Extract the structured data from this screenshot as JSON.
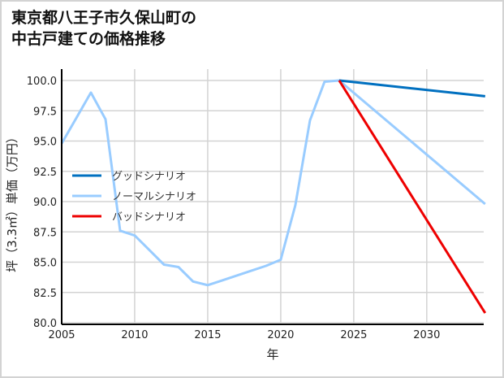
{
  "title_lines": [
    "東京都八王子市久保山町の",
    "中古戸建ての価格推移"
  ],
  "chart_data": {
    "type": "line",
    "title": "東京都八王子市久保山町の中古戸建ての価格推移",
    "xlabel": "年",
    "ylabel": "坪（3.3㎡）単価（万円）",
    "xlim": [
      2005,
      2034
    ],
    "ylim": [
      80.0,
      100.5
    ],
    "xticks": [
      2005,
      2010,
      2015,
      2020,
      2025,
      2030
    ],
    "yticks": [
      80.0,
      82.5,
      85.0,
      87.5,
      90.0,
      92.5,
      95.0,
      97.5,
      100.0
    ],
    "grid": true,
    "legend_position": "center-left",
    "series": [
      {
        "name": "グッドシナリオ",
        "color": "#0070c0",
        "x": [
          2024,
          2034
        ],
        "values": [
          100.0,
          98.7
        ]
      },
      {
        "name": "ノーマルシナリオ",
        "color": "#99ccff",
        "x": [
          2005,
          2006,
          2007,
          2008,
          2009,
          2010,
          2011,
          2012,
          2013,
          2014,
          2015,
          2016,
          2017,
          2018,
          2019,
          2020,
          2021,
          2022,
          2023,
          2024,
          2034
        ],
        "values": [
          94.8,
          96.9,
          99.0,
          96.8,
          87.6,
          87.2,
          86.0,
          84.8,
          84.6,
          83.4,
          83.1,
          83.5,
          83.9,
          84.3,
          84.7,
          85.2,
          89.7,
          96.7,
          99.9,
          100.0,
          89.8
        ]
      },
      {
        "name": "バッドシナリオ",
        "color": "#ee0000",
        "x": [
          2024,
          2034
        ],
        "values": [
          100.0,
          80.8
        ]
      }
    ]
  }
}
